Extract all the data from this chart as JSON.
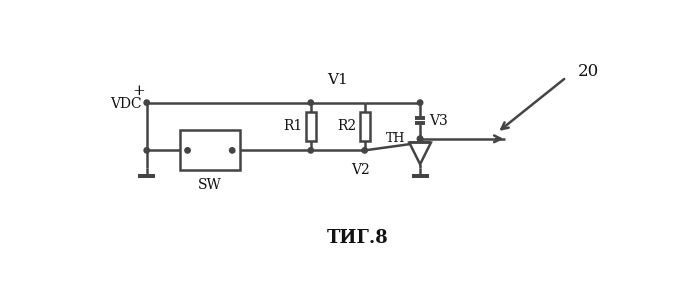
{
  "title": "ΤИГ.8",
  "label_vdc": "VDC",
  "label_v1": "V1",
  "label_v2": "V2",
  "label_v3": "V3",
  "label_r1": "R1",
  "label_r2": "R2",
  "label_th": "TH",
  "label_sw": "SW",
  "label_20": "20",
  "bg_color": "#ffffff",
  "line_color": "#444444",
  "text_color": "#111111",
  "line_width": 1.8
}
